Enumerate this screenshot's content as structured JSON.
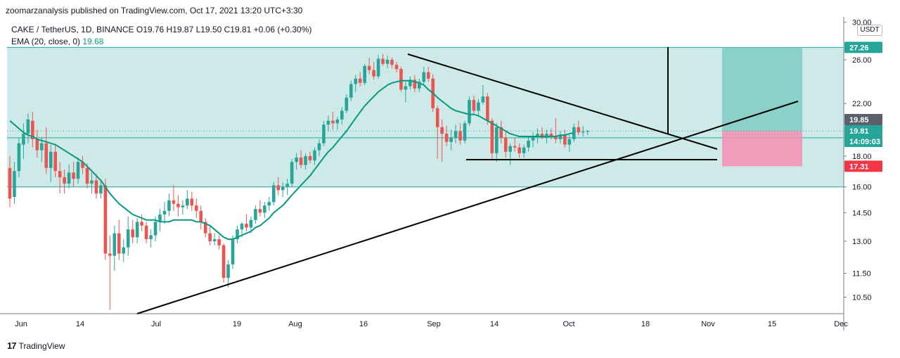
{
  "header": {
    "published": "zoomarzanalysis published on TradingView.com, Oct 17, 2021 13:20 UTC+3:30"
  },
  "legend": {
    "symbol": "CAKE / TetherUS, 1D, BINANCE",
    "ohlc": "O19.76  H19.87  L19.50  C19.81  +0.06 (+0.30%)",
    "ema_label": "EMA (20, close, 0)",
    "ema_value": "19.68"
  },
  "price_axis": {
    "unit": "USDT",
    "ticks": [
      "30.00",
      "26.00",
      "22.00",
      "18.00",
      "16.00",
      "14.50",
      "13.00",
      "11.50",
      "10.50"
    ],
    "tags": [
      {
        "text": "27.26",
        "color": "#26a69a"
      },
      {
        "text": "19.85",
        "color": "#5d606b"
      },
      {
        "text": "19.81",
        "color": "#26a69a"
      },
      {
        "text": "14:09:03",
        "color": "#26a69a"
      },
      {
        "text": "17.31",
        "color": "#f23645"
      }
    ]
  },
  "time_axis": {
    "ticks": [
      "Jun",
      "14",
      "Jul",
      "19",
      "Aug",
      "16",
      "Sep",
      "14",
      "Oct",
      "18",
      "Nov",
      "15",
      "Dec"
    ]
  },
  "footer": {
    "logo_mark": "17",
    "brand": "TradingView"
  },
  "colors": {
    "up": "#26a69a",
    "down": "#ef5350",
    "ema": "#089981",
    "zone": "#b2dfdb",
    "target": "#80cbc4",
    "stop": "#f48fb1"
  },
  "chart_data": {
    "type": "candlestick",
    "title": "CAKE / TetherUS, 1D, BINANCE",
    "scale": "log",
    "ylim": [
      9.8,
      30.0
    ],
    "candles": [
      {
        "o": 17.2,
        "h": 18.0,
        "l": 14.8,
        "c": 15.3
      },
      {
        "o": 15.4,
        "h": 17.6,
        "l": 15.0,
        "c": 17.0
      },
      {
        "o": 17.0,
        "h": 19.3,
        "l": 16.6,
        "c": 18.9
      },
      {
        "o": 18.8,
        "h": 20.4,
        "l": 17.8,
        "c": 19.6
      },
      {
        "o": 19.6,
        "h": 21.2,
        "l": 18.9,
        "c": 20.7
      },
      {
        "o": 20.6,
        "h": 21.3,
        "l": 18.6,
        "c": 19.2
      },
      {
        "o": 19.2,
        "h": 19.9,
        "l": 17.9,
        "c": 18.4
      },
      {
        "o": 18.4,
        "h": 19.3,
        "l": 17.6,
        "c": 18.9
      },
      {
        "o": 18.9,
        "h": 20.1,
        "l": 16.8,
        "c": 17.2
      },
      {
        "o": 17.2,
        "h": 18.8,
        "l": 16.3,
        "c": 18.3
      },
      {
        "o": 18.3,
        "h": 18.8,
        "l": 16.6,
        "c": 17.0
      },
      {
        "o": 17.0,
        "h": 17.6,
        "l": 15.6,
        "c": 16.6
      },
      {
        "o": 16.6,
        "h": 17.1,
        "l": 15.6,
        "c": 16.2
      },
      {
        "o": 16.2,
        "h": 17.4,
        "l": 15.9,
        "c": 16.9
      },
      {
        "o": 16.9,
        "h": 17.6,
        "l": 16.0,
        "c": 16.5
      },
      {
        "o": 16.5,
        "h": 17.9,
        "l": 16.2,
        "c": 17.6
      },
      {
        "o": 17.6,
        "h": 18.0,
        "l": 16.8,
        "c": 17.2
      },
      {
        "o": 17.2,
        "h": 17.5,
        "l": 15.9,
        "c": 16.2
      },
      {
        "o": 16.2,
        "h": 16.9,
        "l": 15.6,
        "c": 16.4
      },
      {
        "o": 16.4,
        "h": 16.8,
        "l": 15.3,
        "c": 15.6
      },
      {
        "o": 15.6,
        "h": 16.4,
        "l": 15.3,
        "c": 16.1
      },
      {
        "o": 16.1,
        "h": 16.5,
        "l": 12.1,
        "c": 12.4
      },
      {
        "o": 12.4,
        "h": 13.3,
        "l": 10.0,
        "c": 12.3
      },
      {
        "o": 12.3,
        "h": 13.8,
        "l": 11.6,
        "c": 13.4
      },
      {
        "o": 13.4,
        "h": 14.1,
        "l": 12.1,
        "c": 12.4
      },
      {
        "o": 12.4,
        "h": 13.1,
        "l": 12.0,
        "c": 12.7
      },
      {
        "o": 12.7,
        "h": 14.3,
        "l": 12.3,
        "c": 13.6
      },
      {
        "o": 13.6,
        "h": 14.1,
        "l": 12.9,
        "c": 13.2
      },
      {
        "o": 13.2,
        "h": 14.2,
        "l": 12.9,
        "c": 14.0
      },
      {
        "o": 14.0,
        "h": 14.4,
        "l": 13.5,
        "c": 13.8
      },
      {
        "o": 13.8,
        "h": 14.0,
        "l": 12.9,
        "c": 13.1
      },
      {
        "o": 13.1,
        "h": 13.6,
        "l": 12.7,
        "c": 13.3
      },
      {
        "o": 13.3,
        "h": 14.3,
        "l": 13.0,
        "c": 14.0
      },
      {
        "o": 14.0,
        "h": 14.7,
        "l": 13.5,
        "c": 14.4
      },
      {
        "o": 14.4,
        "h": 15.1,
        "l": 13.9,
        "c": 14.6
      },
      {
        "o": 14.6,
        "h": 15.6,
        "l": 14.3,
        "c": 15.2
      },
      {
        "o": 15.2,
        "h": 16.1,
        "l": 14.6,
        "c": 15.0
      },
      {
        "o": 15.0,
        "h": 15.5,
        "l": 14.3,
        "c": 14.8
      },
      {
        "o": 14.8,
        "h": 15.2,
        "l": 14.4,
        "c": 14.9
      },
      {
        "o": 14.9,
        "h": 15.8,
        "l": 14.7,
        "c": 15.3
      },
      {
        "o": 15.3,
        "h": 15.7,
        "l": 14.6,
        "c": 14.9
      },
      {
        "o": 14.9,
        "h": 15.3,
        "l": 14.2,
        "c": 14.6
      },
      {
        "o": 14.6,
        "h": 14.9,
        "l": 13.6,
        "c": 14.0
      },
      {
        "o": 14.0,
        "h": 14.2,
        "l": 13.2,
        "c": 13.4
      },
      {
        "o": 13.4,
        "h": 13.8,
        "l": 12.8,
        "c": 13.0
      },
      {
        "o": 13.0,
        "h": 13.4,
        "l": 12.8,
        "c": 13.1
      },
      {
        "o": 13.1,
        "h": 13.3,
        "l": 12.6,
        "c": 12.8
      },
      {
        "o": 12.8,
        "h": 12.9,
        "l": 11.1,
        "c": 11.3
      },
      {
        "o": 11.3,
        "h": 12.1,
        "l": 10.9,
        "c": 11.9
      },
      {
        "o": 11.9,
        "h": 13.3,
        "l": 11.7,
        "c": 13.1
      },
      {
        "o": 13.1,
        "h": 13.8,
        "l": 12.9,
        "c": 13.6
      },
      {
        "o": 13.6,
        "h": 14.0,
        "l": 13.2,
        "c": 13.9
      },
      {
        "o": 13.9,
        "h": 14.4,
        "l": 13.5,
        "c": 13.7
      },
      {
        "o": 13.7,
        "h": 14.3,
        "l": 13.4,
        "c": 14.1
      },
      {
        "o": 14.1,
        "h": 14.9,
        "l": 13.9,
        "c": 14.7
      },
      {
        "o": 14.7,
        "h": 15.2,
        "l": 14.3,
        "c": 14.5
      },
      {
        "o": 14.5,
        "h": 15.1,
        "l": 14.2,
        "c": 14.9
      },
      {
        "o": 14.9,
        "h": 15.4,
        "l": 14.6,
        "c": 15.1
      },
      {
        "o": 15.1,
        "h": 16.3,
        "l": 14.9,
        "c": 16.1
      },
      {
        "o": 16.1,
        "h": 16.6,
        "l": 15.5,
        "c": 15.8
      },
      {
        "o": 15.8,
        "h": 16.3,
        "l": 15.4,
        "c": 16.0
      },
      {
        "o": 16.0,
        "h": 16.5,
        "l": 15.5,
        "c": 16.2
      },
      {
        "o": 16.2,
        "h": 17.8,
        "l": 16.0,
        "c": 17.6
      },
      {
        "o": 17.6,
        "h": 18.2,
        "l": 17.1,
        "c": 17.9
      },
      {
        "o": 17.9,
        "h": 18.4,
        "l": 17.2,
        "c": 17.4
      },
      {
        "o": 17.4,
        "h": 18.2,
        "l": 17.1,
        "c": 18.0
      },
      {
        "o": 18.0,
        "h": 18.3,
        "l": 17.5,
        "c": 17.7
      },
      {
        "o": 17.7,
        "h": 18.6,
        "l": 17.4,
        "c": 18.4
      },
      {
        "o": 18.4,
        "h": 19.2,
        "l": 18.0,
        "c": 18.9
      },
      {
        "o": 18.9,
        "h": 20.6,
        "l": 18.7,
        "c": 20.3
      },
      {
        "o": 20.3,
        "h": 21.0,
        "l": 19.8,
        "c": 20.6
      },
      {
        "o": 20.6,
        "h": 21.3,
        "l": 19.9,
        "c": 20.4
      },
      {
        "o": 20.4,
        "h": 20.9,
        "l": 19.9,
        "c": 20.7
      },
      {
        "o": 20.7,
        "h": 21.7,
        "l": 20.3,
        "c": 21.4
      },
      {
        "o": 21.4,
        "h": 22.8,
        "l": 21.2,
        "c": 22.5
      },
      {
        "o": 22.5,
        "h": 24.0,
        "l": 22.2,
        "c": 23.7
      },
      {
        "o": 23.7,
        "h": 24.5,
        "l": 23.0,
        "c": 24.2
      },
      {
        "o": 24.2,
        "h": 24.8,
        "l": 23.5,
        "c": 23.8
      },
      {
        "o": 23.8,
        "h": 25.6,
        "l": 23.6,
        "c": 25.4
      },
      {
        "o": 25.4,
        "h": 26.2,
        "l": 24.6,
        "c": 25.0
      },
      {
        "o": 25.0,
        "h": 25.8,
        "l": 24.1,
        "c": 24.4
      },
      {
        "o": 24.4,
        "h": 26.5,
        "l": 24.2,
        "c": 26.1
      },
      {
        "o": 26.1,
        "h": 26.6,
        "l": 25.4,
        "c": 25.6
      },
      {
        "o": 25.6,
        "h": 26.4,
        "l": 25.2,
        "c": 26.0
      },
      {
        "o": 26.0,
        "h": 26.2,
        "l": 25.2,
        "c": 25.5
      },
      {
        "o": 25.5,
        "h": 25.8,
        "l": 24.8,
        "c": 25.1
      },
      {
        "o": 25.1,
        "h": 25.3,
        "l": 23.0,
        "c": 23.2
      },
      {
        "o": 23.2,
        "h": 23.9,
        "l": 22.1,
        "c": 23.5
      },
      {
        "o": 23.5,
        "h": 24.4,
        "l": 23.2,
        "c": 24.1
      },
      {
        "o": 24.1,
        "h": 24.5,
        "l": 23.0,
        "c": 23.3
      },
      {
        "o": 23.3,
        "h": 24.2,
        "l": 23.0,
        "c": 23.9
      },
      {
        "o": 23.9,
        "h": 25.3,
        "l": 23.6,
        "c": 24.8
      },
      {
        "o": 24.8,
        "h": 25.3,
        "l": 23.9,
        "c": 24.2
      },
      {
        "o": 24.2,
        "h": 24.6,
        "l": 21.3,
        "c": 21.6
      },
      {
        "o": 21.6,
        "h": 21.8,
        "l": 17.8,
        "c": 20.1
      },
      {
        "o": 20.1,
        "h": 20.7,
        "l": 17.6,
        "c": 19.6
      },
      {
        "o": 19.6,
        "h": 20.2,
        "l": 18.7,
        "c": 19.0
      },
      {
        "o": 19.0,
        "h": 19.9,
        "l": 18.4,
        "c": 19.3
      },
      {
        "o": 19.3,
        "h": 20.3,
        "l": 18.9,
        "c": 19.8
      },
      {
        "o": 19.8,
        "h": 20.4,
        "l": 18.8,
        "c": 19.1
      },
      {
        "o": 19.1,
        "h": 20.6,
        "l": 18.9,
        "c": 20.4
      },
      {
        "o": 20.4,
        "h": 22.6,
        "l": 20.2,
        "c": 22.3
      },
      {
        "o": 22.3,
        "h": 22.7,
        "l": 21.1,
        "c": 21.4
      },
      {
        "o": 21.4,
        "h": 22.4,
        "l": 20.9,
        "c": 22.1
      },
      {
        "o": 22.1,
        "h": 23.6,
        "l": 21.9,
        "c": 22.6
      },
      {
        "o": 22.6,
        "h": 22.9,
        "l": 20.3,
        "c": 20.6
      },
      {
        "o": 20.6,
        "h": 20.8,
        "l": 17.8,
        "c": 18.2
      },
      {
        "o": 18.2,
        "h": 20.4,
        "l": 17.6,
        "c": 20.1
      },
      {
        "o": 20.1,
        "h": 20.6,
        "l": 18.9,
        "c": 19.3
      },
      {
        "o": 19.3,
        "h": 19.8,
        "l": 17.9,
        "c": 18.3
      },
      {
        "o": 18.3,
        "h": 18.9,
        "l": 17.4,
        "c": 18.7
      },
      {
        "o": 18.7,
        "h": 19.3,
        "l": 18.3,
        "c": 18.6
      },
      {
        "o": 18.6,
        "h": 18.9,
        "l": 17.9,
        "c": 18.2
      },
      {
        "o": 18.2,
        "h": 18.8,
        "l": 17.9,
        "c": 18.6
      },
      {
        "o": 18.6,
        "h": 19.4,
        "l": 18.3,
        "c": 19.1
      },
      {
        "o": 19.1,
        "h": 19.7,
        "l": 18.6,
        "c": 19.4
      },
      {
        "o": 19.4,
        "h": 20.0,
        "l": 18.9,
        "c": 19.6
      },
      {
        "o": 19.6,
        "h": 20.1,
        "l": 19.2,
        "c": 19.3
      },
      {
        "o": 19.3,
        "h": 19.9,
        "l": 18.9,
        "c": 19.6
      },
      {
        "o": 19.6,
        "h": 20.0,
        "l": 19.2,
        "c": 19.4
      },
      {
        "o": 19.4,
        "h": 20.8,
        "l": 18.9,
        "c": 19.2
      },
      {
        "o": 19.2,
        "h": 19.8,
        "l": 18.9,
        "c": 19.5
      },
      {
        "o": 19.5,
        "h": 19.9,
        "l": 18.6,
        "c": 18.8
      },
      {
        "o": 18.8,
        "h": 19.5,
        "l": 18.3,
        "c": 19.2
      },
      {
        "o": 19.2,
        "h": 20.4,
        "l": 19.0,
        "c": 20.1
      },
      {
        "o": 20.1,
        "h": 20.6,
        "l": 19.5,
        "c": 19.7
      },
      {
        "o": 19.7,
        "h": 20.2,
        "l": 19.4,
        "c": 19.76
      },
      {
        "o": 19.76,
        "h": 19.87,
        "l": 19.5,
        "c": 19.81
      }
    ],
    "ema": [
      20.6,
      20.3,
      20.0,
      19.7,
      19.5,
      19.4,
      19.2,
      19.1,
      19.0,
      18.9,
      18.8,
      18.6,
      18.4,
      18.2,
      18.0,
      17.8,
      17.6,
      17.3,
      17.0,
      16.7,
      16.4,
      16.0,
      15.6,
      15.3,
      15.0,
      14.8,
      14.6,
      14.4,
      14.3,
      14.2,
      14.1,
      14.1,
      14.1,
      14.0,
      14.0,
      14.0,
      14.1,
      14.1,
      14.1,
      14.1,
      14.1,
      14.0,
      14.0,
      13.9,
      13.8,
      13.6,
      13.4,
      13.2,
      13.1,
      13.1,
      13.2,
      13.3,
      13.4,
      13.5,
      13.7,
      13.8,
      14.0,
      14.2,
      14.5,
      14.7,
      14.9,
      15.2,
      15.5,
      15.8,
      16.1,
      16.4,
      16.7,
      17.1,
      17.5,
      17.9,
      18.3,
      18.6,
      19.0,
      19.4,
      19.8,
      20.3,
      20.8,
      21.3,
      21.8,
      22.2,
      22.6,
      23.0,
      23.3,
      23.6,
      23.8,
      23.9,
      24.0,
      24.0,
      24.0,
      23.9,
      23.8,
      23.6,
      23.2,
      22.9,
      22.5,
      22.2,
      21.9,
      21.6,
      21.4,
      21.3,
      21.2,
      21.1,
      21.1,
      21.0,
      20.8,
      20.6,
      20.4,
      20.2,
      20.0,
      19.8,
      19.6,
      19.5,
      19.4,
      19.4,
      19.4,
      19.4,
      19.4,
      19.4,
      19.4,
      19.4,
      19.4,
      19.5,
      19.5,
      19.6,
      19.68
    ],
    "horizontal_levels": [
      16.0,
      19.3,
      27.26,
      17.31,
      18.2
    ],
    "annotations": [
      "support-resistance zone 16.00–19.30",
      "descending trendline",
      "ascending trendline",
      "long position: entry 19.81, target 27.26, stop 17.31"
    ]
  }
}
